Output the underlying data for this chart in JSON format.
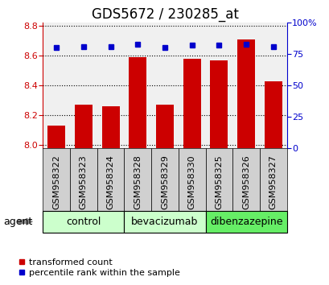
{
  "title": "GDS5672 / 230285_at",
  "samples": [
    "GSM958322",
    "GSM958323",
    "GSM958324",
    "GSM958328",
    "GSM958329",
    "GSM958330",
    "GSM958325",
    "GSM958326",
    "GSM958327"
  ],
  "transformed_count": [
    8.13,
    8.27,
    8.26,
    8.59,
    8.27,
    8.58,
    8.57,
    8.71,
    8.43
  ],
  "percentile_rank": [
    80,
    81,
    81,
    83,
    80,
    82,
    82,
    83,
    81
  ],
  "groups": [
    {
      "label": "control",
      "indices": [
        0,
        1,
        2
      ],
      "color": "#ccffcc"
    },
    {
      "label": "bevacizumab",
      "indices": [
        3,
        4,
        5
      ],
      "color": "#ccffcc"
    },
    {
      "label": "dibenzazepine",
      "indices": [
        6,
        7,
        8
      ],
      "color": "#66ee66"
    }
  ],
  "ylim_left": [
    7.98,
    8.82
  ],
  "ylim_right": [
    0,
    100
  ],
  "yticks_left": [
    8.0,
    8.2,
    8.4,
    8.6,
    8.8
  ],
  "yticks_right": [
    0,
    25,
    50,
    75,
    100
  ],
  "ytick_labels_right": [
    "0",
    "25",
    "50",
    "75",
    "100%"
  ],
  "bar_color": "#cc0000",
  "dot_color": "#0000cc",
  "bar_width": 0.65,
  "background_color": "#ffffff",
  "plot_bg_color": "#f0f0f0",
  "grid_color": "#000000",
  "title_fontsize": 12,
  "tick_fontsize": 8,
  "legend_fontsize": 8,
  "label_fontsize": 9,
  "sample_box_color": "#d0d0d0"
}
